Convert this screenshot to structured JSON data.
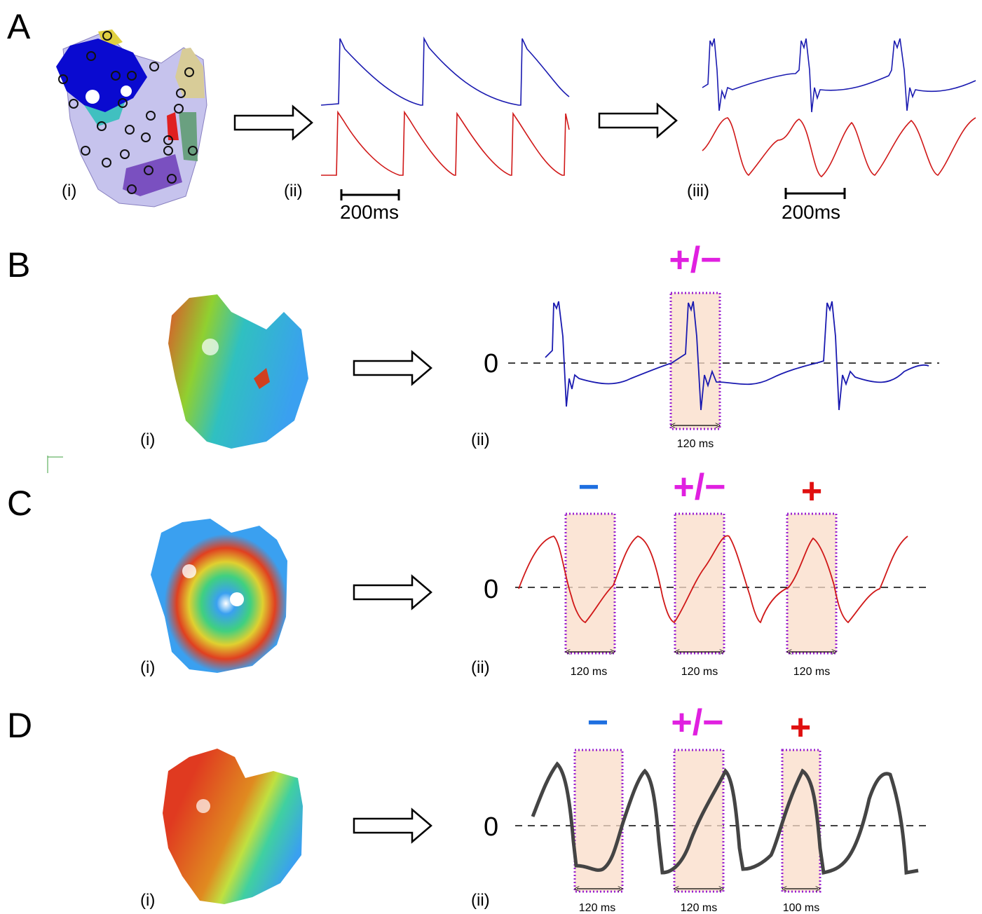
{
  "panels": [
    {
      "label": "A",
      "sublabels": [
        "(i)",
        "(ii)",
        "(iii)"
      ],
      "scale_bars": [
        "200ms",
        "200ms"
      ]
    },
    {
      "label": "B",
      "sublabels": [
        "(i)",
        "(ii)"
      ],
      "zero_label": "0",
      "windows": [
        {
          "sign": "+/−",
          "duration": "120 ms"
        }
      ]
    },
    {
      "label": "C",
      "sublabels": [
        "(i)",
        "(ii)"
      ],
      "zero_label": "0",
      "windows": [
        {
          "sign": "−",
          "duration": "120 ms"
        },
        {
          "sign": "+/−",
          "duration": "120 ms"
        },
        {
          "sign": "+",
          "duration": "120 ms"
        }
      ]
    },
    {
      "label": "D",
      "sublabels": [
        "(i)",
        "(ii)"
      ],
      "zero_label": "0",
      "windows": [
        {
          "sign": "−",
          "duration": "120 ms"
        },
        {
          "sign": "+/−",
          "duration": "120 ms"
        },
        {
          "sign": "+",
          "duration": "100 ms"
        }
      ]
    }
  ]
}
